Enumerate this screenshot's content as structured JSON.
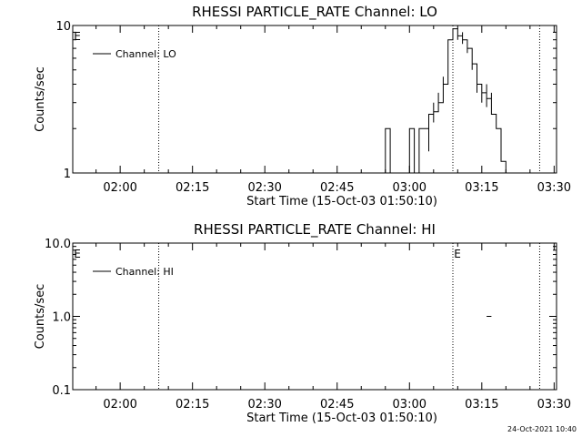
{
  "footer_timestamp": "24-Oct-2021 10:40",
  "chart_data": [
    {
      "type": "line",
      "title": "RHESSI PARTICLE_RATE Channel: LO",
      "xlabel": "Start Time (15-Oct-03 01:50:10)",
      "ylabel": "Counts/sec",
      "y_scale": "log",
      "ylim": [
        1,
        10
      ],
      "y_ticks": [
        {
          "value": 1,
          "label": "1"
        },
        {
          "value": 10,
          "label": "10"
        }
      ],
      "xlim": [
        "01:50:10",
        "03:30:30"
      ],
      "x_ticks": [
        "02:00",
        "02:15",
        "02:30",
        "02:45",
        "03:00",
        "03:15",
        "03:30"
      ],
      "legend": {
        "position": "top-left",
        "entries": [
          "Channel: LO"
        ]
      },
      "flag_marker": "E",
      "vertical_lines": [
        "02:08",
        "03:09",
        "03:27"
      ],
      "series": [
        {
          "name": "Channel: LO",
          "x": [
            "02:54",
            "02:55",
            "02:55",
            "02:56",
            "02:56",
            "02:56",
            "02:57",
            "02:57",
            "02:58",
            "02:58",
            "02:59",
            "02:59",
            "03:00",
            "03:00",
            "03:00",
            "03:01",
            "03:01",
            "03:01",
            "03:02",
            "03:02",
            "03:03",
            "03:03",
            "03:04",
            "03:04",
            "03:04",
            "03:05",
            "03:05",
            "03:05",
            "03:06",
            "03:06",
            "03:07",
            "03:07",
            "03:08",
            "03:08",
            "03:08",
            "03:09",
            "03:09",
            "03:10",
            "03:10",
            "03:10",
            "03:11",
            "03:11",
            "03:11",
            "03:12",
            "03:12",
            "03:12",
            "03:13",
            "03:13",
            "03:13",
            "03:14",
            "03:14",
            "03:14",
            "03:15",
            "03:15",
            "03:15",
            "03:16",
            "03:16",
            "03:16",
            "03:17",
            "03:17",
            "03:17",
            "03:18",
            "03:18",
            "03:18",
            "03:19",
            "03:19",
            "03:19",
            "03:20",
            "03:20",
            "03:21",
            "03:21"
          ],
          "y": [
            1,
            1,
            2,
            2,
            1,
            1,
            1,
            1,
            1,
            1,
            1,
            1,
            1,
            2,
            2,
            2,
            1,
            1,
            1,
            2,
            2,
            2,
            1.4,
            2,
            2.5,
            2.2,
            3,
            2.6,
            3.5,
            3,
            4.5,
            4,
            6,
            7,
            8,
            8,
            9.5,
            9,
            8,
            8.5,
            9,
            7.5,
            8,
            7,
            6.5,
            7,
            6,
            5,
            5.5,
            4.5,
            3.5,
            4,
            3.5,
            3,
            3.5,
            2.8,
            4,
            3.2,
            3.5,
            2.5,
            2.5,
            2,
            2,
            2,
            2,
            1.4,
            1.2,
            1,
            1,
            1,
            1
          ]
        }
      ]
    },
    {
      "type": "line",
      "title": "RHESSI PARTICLE_RATE Channel: HI",
      "xlabel": "Start Time (15-Oct-03 01:50:10)",
      "ylabel": "Counts/sec",
      "y_scale": "log",
      "ylim": [
        0.1,
        10
      ],
      "y_ticks": [
        {
          "value": 0.1,
          "label": "0.1"
        },
        {
          "value": 1,
          "label": "1.0"
        },
        {
          "value": 10,
          "label": "10.0"
        }
      ],
      "xlim": [
        "01:50:10",
        "03:30:30"
      ],
      "x_ticks": [
        "02:00",
        "02:15",
        "02:30",
        "02:45",
        "03:00",
        "03:15",
        "03:30"
      ],
      "legend": {
        "position": "top-left",
        "entries": [
          "Channel: HI"
        ]
      },
      "flag_marker": "E",
      "vertical_lines": [
        "02:08",
        "03:09",
        "03:27"
      ],
      "series": [
        {
          "name": "Channel: HI",
          "x": [
            "03:16",
            "03:17"
          ],
          "y": [
            1,
            1
          ]
        }
      ]
    }
  ]
}
